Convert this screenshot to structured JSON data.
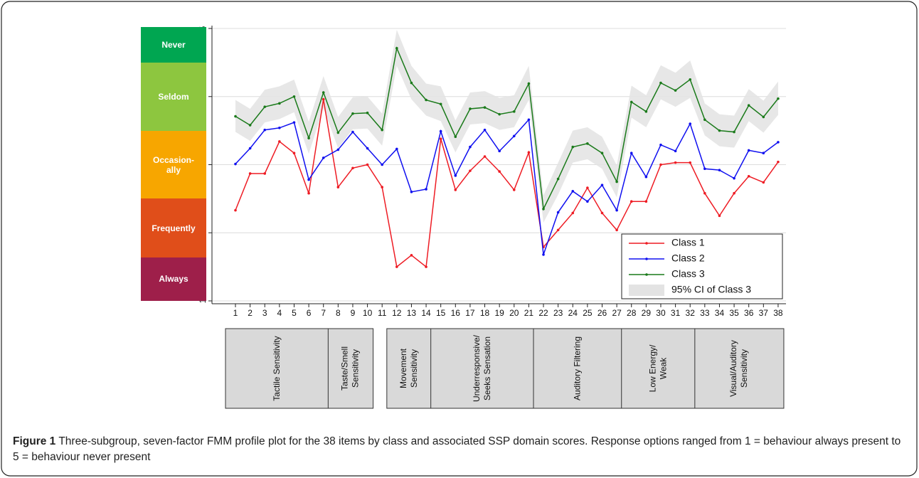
{
  "chart_data": {
    "type": "line",
    "categories": [
      1,
      2,
      3,
      4,
      5,
      6,
      7,
      8,
      9,
      10,
      11,
      12,
      13,
      14,
      15,
      16,
      17,
      18,
      19,
      20,
      21,
      22,
      23,
      24,
      25,
      26,
      27,
      28,
      29,
      30,
      31,
      32,
      33,
      34,
      35,
      36,
      37,
      38
    ],
    "ylim": [
      1,
      5
    ],
    "yticks": [
      1,
      2,
      3,
      4,
      5
    ],
    "grid": true,
    "legend": "bottom-right",
    "series": [
      {
        "name": "Class 1",
        "color": "#ee1c24",
        "values": [
          2.33,
          2.87,
          2.87,
          3.34,
          3.17,
          2.58,
          3.96,
          2.67,
          2.95,
          3.0,
          2.67,
          1.5,
          1.67,
          1.5,
          3.38,
          2.63,
          2.91,
          3.12,
          2.9,
          2.63,
          3.18,
          1.79,
          2.04,
          2.29,
          2.66,
          2.29,
          2.04,
          2.46,
          2.46,
          3.0,
          3.03,
          3.03,
          2.58,
          2.25,
          2.58,
          2.83,
          2.74,
          3.04
        ]
      },
      {
        "name": "Class 2",
        "color": "#1010f0",
        "values": [
          3.01,
          3.24,
          3.51,
          3.54,
          3.62,
          2.78,
          3.1,
          3.22,
          3.48,
          3.24,
          3.0,
          3.23,
          2.6,
          2.64,
          3.49,
          2.84,
          3.26,
          3.51,
          3.2,
          3.42,
          3.66,
          1.68,
          2.3,
          2.61,
          2.46,
          2.7,
          2.33,
          3.17,
          2.82,
          3.29,
          3.2,
          3.6,
          2.94,
          2.92,
          2.8,
          3.21,
          3.17,
          3.33
        ]
      },
      {
        "name": "Class 3",
        "color": "#1a7a1a",
        "values": [
          3.71,
          3.58,
          3.85,
          3.9,
          4.0,
          3.39,
          4.06,
          3.47,
          3.75,
          3.76,
          3.51,
          4.71,
          4.2,
          3.95,
          3.89,
          3.41,
          3.82,
          3.84,
          3.74,
          3.78,
          4.19,
          2.35,
          2.79,
          3.26,
          3.31,
          3.17,
          2.75,
          3.92,
          3.78,
          4.2,
          4.09,
          4.25,
          3.66,
          3.5,
          3.48,
          3.87,
          3.7,
          3.97
        ]
      }
    ],
    "ci": {
      "name": "95% CI of Class 3",
      "color": "#e3e3e3",
      "upper": [
        3.95,
        3.82,
        4.1,
        4.15,
        4.25,
        3.63,
        4.3,
        3.7,
        3.99,
        4.0,
        3.75,
        4.98,
        4.45,
        4.19,
        4.15,
        3.65,
        4.06,
        4.08,
        3.98,
        4.02,
        4.45,
        2.55,
        3.03,
        3.5,
        3.55,
        3.41,
        2.99,
        4.16,
        4.02,
        4.46,
        4.35,
        4.53,
        3.9,
        3.74,
        3.72,
        4.11,
        3.94,
        4.22
      ],
      "lower": [
        3.48,
        3.35,
        3.62,
        3.67,
        3.77,
        3.16,
        3.83,
        3.24,
        3.52,
        3.53,
        3.28,
        4.45,
        3.96,
        3.72,
        3.64,
        3.18,
        3.59,
        3.61,
        3.51,
        3.55,
        3.95,
        2.15,
        2.56,
        3.03,
        3.08,
        2.94,
        2.52,
        3.69,
        3.55,
        3.96,
        3.85,
        3.98,
        3.43,
        3.27,
        3.25,
        3.64,
        3.47,
        3.73
      ]
    },
    "response_bands": [
      {
        "label": "Never",
        "from": 4.5,
        "to": 5,
        "color": "#00a651"
      },
      {
        "label": "Seldom",
        "from": 3.5,
        "to": 4.5,
        "color": "#8dc63f"
      },
      {
        "label": "Occasion-ally",
        "from": 2.5,
        "to": 3.5,
        "color": "#f7a600"
      },
      {
        "label": "Frequently",
        "from": 1.64,
        "to": 2.5,
        "color": "#e04e1a"
      },
      {
        "label": "Always",
        "from": 1,
        "to": 1.64,
        "color": "#9e1f4a"
      }
    ],
    "domains": [
      {
        "lines": [
          "Tactile Sensitivity"
        ],
        "start": 1,
        "end": 7
      },
      {
        "lines": [
          "Taste/Smell",
          "Sensitivity"
        ],
        "start": 8,
        "end": 10
      },
      {
        "lines": [
          "Movement",
          "Sensitivity"
        ],
        "start": 12,
        "end": 14
      },
      {
        "lines": [
          "Underresponsive/",
          "Seeks Sensation"
        ],
        "start": 15,
        "end": 21
      },
      {
        "lines": [
          "Auditory Filtering"
        ],
        "start": 22,
        "end": 27
      },
      {
        "lines": [
          "Low Energy/",
          "Weak"
        ],
        "start": 28,
        "end": 32
      },
      {
        "lines": [
          "Visual/Auditory",
          "Sensitivity"
        ],
        "start": 33,
        "end": 38
      }
    ]
  },
  "caption": {
    "label": "Figure 1",
    "text": "Three-subgroup, seven-factor FMM profile plot for the 38 items by class and associated SSP domain scores. Response options ranged from 1 = behaviour always present to 5 = behaviour never present"
  }
}
